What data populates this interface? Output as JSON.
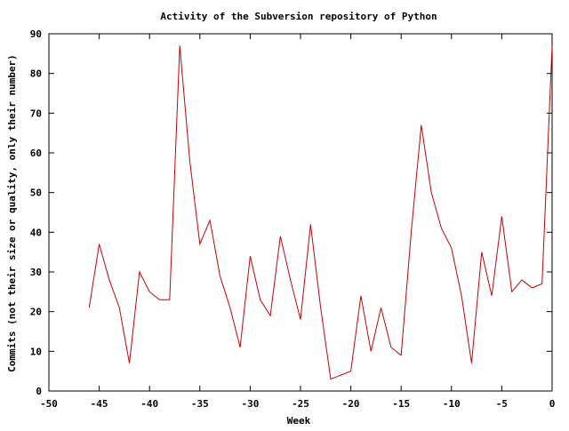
{
  "chart_data": {
    "type": "line",
    "title": "Activity of the Subversion repository of Python",
    "xlabel": "Week",
    "ylabel": "Commits (not their size or quality, only their number)",
    "xlim": [
      -50,
      0
    ],
    "ylim": [
      0,
      90
    ],
    "xticks": [
      -50,
      -45,
      -40,
      -35,
      -30,
      -25,
      -20,
      -15,
      -10,
      -5,
      0
    ],
    "yticks": [
      0,
      10,
      20,
      30,
      40,
      50,
      60,
      70,
      80,
      90
    ],
    "grid": false,
    "legend": "none",
    "line_color": "#cc0000",
    "series": [
      {
        "x": [
          -46,
          -45,
          -44,
          -43,
          -42,
          -41,
          -40,
          -39,
          -38,
          -37,
          -36,
          -35,
          -34,
          -33,
          -32,
          -31,
          -30,
          -29,
          -28,
          -27,
          -26,
          -25,
          -24,
          -23,
          -22,
          -21,
          -20,
          -19,
          -18,
          -17,
          -16,
          -15,
          -14,
          -13,
          -12,
          -11,
          -10,
          -9,
          -8,
          -7,
          -6,
          -5,
          -4,
          -3,
          -2,
          -1,
          0
        ],
        "y": [
          21,
          37,
          28,
          21,
          7,
          30,
          25,
          23,
          23,
          87,
          58,
          37,
          43,
          29,
          21,
          11,
          34,
          23,
          19,
          39,
          28,
          18,
          42,
          21,
          3,
          4,
          5,
          24,
          10,
          21,
          11,
          9,
          40,
          67,
          50,
          41,
          36,
          24,
          7,
          35,
          24,
          44,
          25,
          28,
          26,
          27,
          87
        ]
      }
    ]
  }
}
